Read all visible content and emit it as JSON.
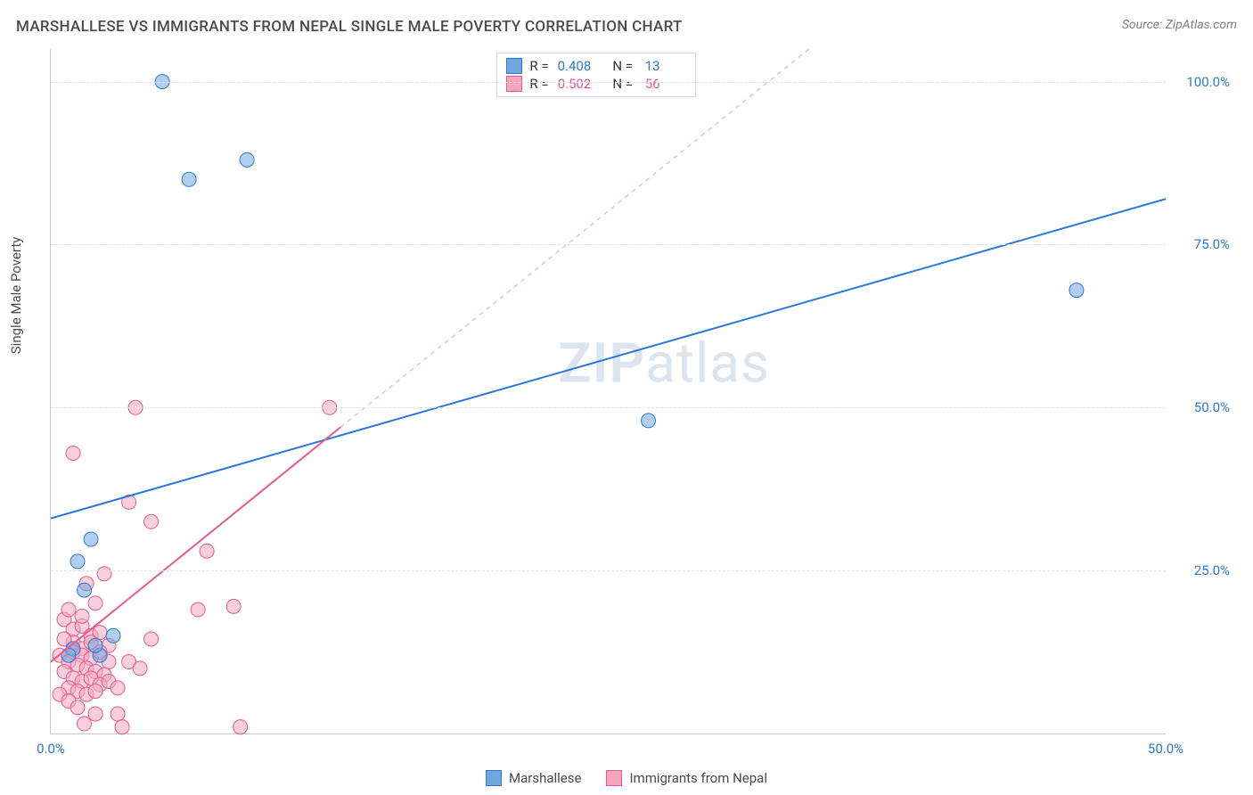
{
  "title": "MARSHALLESE VS IMMIGRANTS FROM NEPAL SINGLE MALE POVERTY CORRELATION CHART",
  "source_label": "Source: ZipAtlas.com",
  "ylabel": "Single Male Poverty",
  "watermark": {
    "part1": "ZIP",
    "part2": "atlas"
  },
  "chart": {
    "type": "scatter",
    "xlim": [
      0,
      50
    ],
    "ylim": [
      0,
      105
    ],
    "x_ticks": [
      {
        "v": 0,
        "label": "0.0%"
      },
      {
        "v": 50,
        "label": "50.0%"
      }
    ],
    "y_ticks": [
      {
        "v": 25,
        "label": "25.0%"
      },
      {
        "v": 50,
        "label": "50.0%"
      },
      {
        "v": 75,
        "label": "75.0%"
      },
      {
        "v": 100,
        "label": "100.0%"
      }
    ],
    "background_color": "#ffffff",
    "grid_color": "#e0e0e0",
    "marker_radius": 8,
    "marker_opacity": 0.55,
    "series": [
      {
        "key": "marshallese",
        "label": "Marshallese",
        "color": "#6fa6e0",
        "stroke": "#2d78d6",
        "tick_color": "#2d78d6",
        "R": "0.408",
        "N": "13",
        "trend": {
          "x1": 0,
          "y1": 33,
          "x2": 50,
          "y2": 82,
          "width": 2,
          "dash": ""
        },
        "trend_ext": {
          "x1": 0,
          "y1": 33,
          "x2": 50,
          "y2": 82
        },
        "points": [
          [
            5.0,
            100.0
          ],
          [
            6.2,
            85.0
          ],
          [
            8.8,
            88.0
          ],
          [
            1.8,
            29.8
          ],
          [
            1.2,
            26.4
          ],
          [
            2.2,
            12.0
          ],
          [
            2.0,
            13.5
          ],
          [
            1.0,
            13.0
          ],
          [
            26.8,
            48.0
          ],
          [
            46.0,
            68.0
          ],
          [
            2.8,
            15.0
          ],
          [
            1.5,
            22.0
          ],
          [
            0.8,
            12.0
          ]
        ]
      },
      {
        "key": "nepal",
        "label": "Immigrants from Nepal",
        "color": "#f4a7bb",
        "stroke": "#e75a8d",
        "tick_color": "#e75a8d",
        "R": "0.502",
        "N": "56",
        "trend": {
          "x1": 0,
          "y1": 11,
          "x2": 13,
          "y2": 47,
          "width": 2,
          "dash": ""
        },
        "trend_ext": {
          "x1": 13,
          "y1": 47,
          "x2": 34,
          "y2": 105,
          "dash": "5,5"
        },
        "points": [
          [
            1.0,
            43.0
          ],
          [
            3.8,
            50.0
          ],
          [
            12.5,
            50.0
          ],
          [
            3.5,
            35.5
          ],
          [
            4.5,
            32.5
          ],
          [
            7.0,
            28.0
          ],
          [
            6.6,
            19.0
          ],
          [
            8.2,
            19.5
          ],
          [
            2.4,
            24.5
          ],
          [
            1.6,
            23.0
          ],
          [
            2.0,
            20.0
          ],
          [
            0.6,
            17.5
          ],
          [
            1.0,
            16.0
          ],
          [
            1.4,
            16.5
          ],
          [
            1.8,
            15.0
          ],
          [
            2.2,
            15.5
          ],
          [
            1.0,
            14.0
          ],
          [
            1.4,
            13.0
          ],
          [
            1.8,
            14.0
          ],
          [
            0.6,
            14.5
          ],
          [
            2.6,
            13.5
          ],
          [
            1.0,
            12.5
          ],
          [
            1.4,
            12.0
          ],
          [
            1.8,
            11.5
          ],
          [
            2.2,
            12.5
          ],
          [
            2.6,
            11.0
          ],
          [
            0.4,
            12.0
          ],
          [
            0.8,
            11.0
          ],
          [
            1.2,
            10.5
          ],
          [
            1.6,
            10.0
          ],
          [
            2.0,
            9.5
          ],
          [
            2.4,
            9.0
          ],
          [
            0.6,
            9.5
          ],
          [
            1.0,
            8.5
          ],
          [
            1.4,
            8.0
          ],
          [
            1.8,
            8.5
          ],
          [
            2.2,
            7.5
          ],
          [
            2.6,
            8.0
          ],
          [
            3.0,
            7.0
          ],
          [
            0.8,
            7.0
          ],
          [
            1.2,
            6.5
          ],
          [
            1.6,
            6.0
          ],
          [
            2.0,
            6.5
          ],
          [
            0.4,
            6.0
          ],
          [
            0.8,
            5.0
          ],
          [
            3.5,
            11.0
          ],
          [
            4.0,
            10.0
          ],
          [
            4.5,
            14.5
          ],
          [
            1.2,
            4.0
          ],
          [
            2.0,
            3.0
          ],
          [
            3.0,
            3.0
          ],
          [
            1.5,
            1.5
          ],
          [
            3.2,
            1.0
          ],
          [
            8.5,
            1.0
          ],
          [
            0.8,
            19.0
          ],
          [
            1.4,
            18.0
          ]
        ]
      }
    ]
  },
  "r_legend": {
    "r_label": "R =",
    "n_label": "N ="
  },
  "bottom_legend": [
    {
      "series": "marshallese"
    },
    {
      "series": "nepal"
    }
  ]
}
